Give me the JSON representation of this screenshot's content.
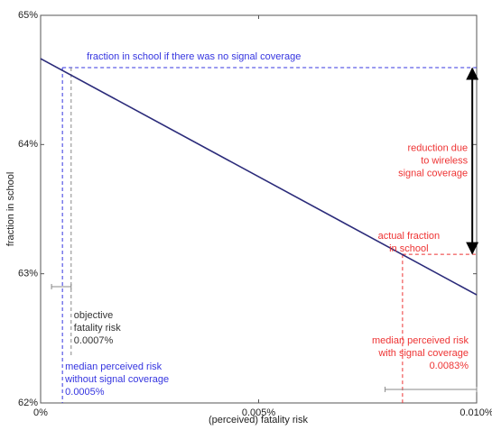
{
  "chart_data": {
    "type": "line",
    "xlabel": "(perceived) fatality risk",
    "ylabel": "fraction in school",
    "x": [
      0,
      0.01
    ],
    "series": [
      {
        "color": "#2b2b7a",
        "values": [
          64.665,
          62.837
        ]
      }
    ],
    "xlim": [
      0,
      0.01
    ],
    "ylim": [
      62,
      65
    ],
    "xticks": [
      {
        "value": 0,
        "label": "0%"
      },
      {
        "value": 0.005,
        "label": "0.005%"
      },
      {
        "value": 0.01,
        "label": "0.010%"
      }
    ],
    "yticks": [
      {
        "value": 62,
        "label": "62%"
      },
      {
        "value": 63,
        "label": "63%"
      },
      {
        "value": 64,
        "label": "64%"
      },
      {
        "value": 65,
        "label": "65%"
      }
    ],
    "counterfactual": {
      "text": "fraction in school if there was no signal coverage",
      "y": 64.595,
      "color": "#3535e0"
    },
    "median_no_coverage": {
      "text": [
        "median perceived risk",
        "without signal coverage",
        "0.0005%"
      ],
      "x": 0.0005,
      "color": "#3535e0"
    },
    "objective": {
      "text": [
        "objective",
        "fatality risk",
        "0.0007%"
      ],
      "x": 0.0007,
      "color": "#333333",
      "line_color": "#888888"
    },
    "actual": {
      "text": [
        "actual fraction",
        "in school"
      ],
      "y": 63.15,
      "color": "#ee3333"
    },
    "median_coverage": {
      "text": [
        "median perceived risk",
        "with signal coverage",
        "0.0083%"
      ],
      "x": 0.0083,
      "color": "#ee3333"
    },
    "reduction": {
      "text": [
        "reduction due",
        "to wireless",
        "signal coverage"
      ],
      "x": 0.0099,
      "color": "#000000",
      "text_color": "#ee3333"
    },
    "error_bars": [
      {
        "x": [
          0.00025,
          0.0007
        ],
        "y": 62.9
      },
      {
        "x": [
          0.0079,
          0.01
        ],
        "y": 62.105
      }
    ],
    "error_bar_color": "#888888"
  }
}
